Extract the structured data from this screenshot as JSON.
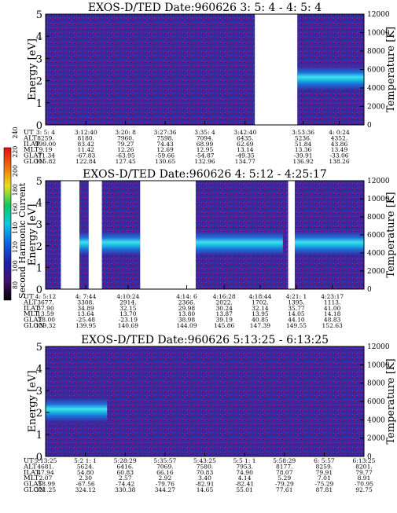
{
  "colorbar": {
    "label": "Second Harmonic Current",
    "ticks": [
      "80",
      "100",
      "120",
      "140",
      "160",
      "180",
      "200",
      "220",
      "240"
    ]
  },
  "colors": {
    "background": "#3a2aa0",
    "low": "#1e1466",
    "mid": "#1c6fd8",
    "band": "#19c8e0",
    "high": "#6cf0ff",
    "noise": "#a01050"
  },
  "row_labels": [
    "UT",
    "ALT",
    "ILAT",
    "MLT",
    "GLAT",
    "GLON"
  ],
  "chart_data": [
    {
      "type": "heatmap",
      "title": "EXOS-D/TED   Date:960626  3: 5: 4 - 4: 5: 4",
      "ylabel": "Energy [eV]",
      "y2label": "Temperature [K]",
      "ylim": [
        0,
        5
      ],
      "y2lim": [
        0,
        12000
      ],
      "yticks": [
        "0",
        "1",
        "2",
        "3",
        "4",
        "5"
      ],
      "y2ticks": [
        "0",
        "2000",
        "4000",
        "6000",
        "8000",
        "10000",
        "12000"
      ],
      "data_gaps_ut": [
        [
          "3:44:30",
          "3:52:30"
        ]
      ],
      "bright_band": {
        "energy_center_eV": 2.0,
        "segments": [
          [
            "3:52:30",
            "4:05:04"
          ]
        ]
      },
      "table": [
        [
          "3: 5: 4",
          "3:12:40",
          "3:20: 8",
          "3:27:36",
          "3:35: 4",
          "3:42:40",
          "3:53:36",
          "4: 0:24"
        ],
        [
          "8259.",
          "8180.",
          "7960.",
          "7598.",
          "7094.",
          "6435.",
          "5236.",
          "4352."
        ],
        [
          "999.00",
          "83.42",
          "79.27",
          "74.43",
          "68.99",
          "62.69",
          "51.84",
          "43.86"
        ],
        [
          "9.19",
          "11.42",
          "12.26",
          "12.69",
          "12.95",
          "13.14",
          "13.36",
          "13.49"
        ],
        [
          "-71.34",
          "-67.83",
          "-63.95",
          "-59.66",
          "-54.87",
          "-49.35",
          "-39.91",
          "-33.06"
        ],
        [
          "115.82",
          "122.84",
          "127.45",
          "130.65",
          "132.96",
          "134.77",
          "136.92",
          "138.26"
        ]
      ]
    },
    {
      "type": "heatmap",
      "title": "EXOS-D/TED   Date:960626  4: 5:12 - 4:25:17",
      "ylabel": "Energy [eV]",
      "y2label": "Temperature [K]",
      "ylim": [
        0,
        5
      ],
      "y2lim": [
        0,
        12000
      ],
      "yticks": [
        "0",
        "1",
        "2",
        "3",
        "4",
        "5"
      ],
      "y2ticks": [
        "0",
        "2000",
        "4000",
        "6000",
        "8000",
        "10000",
        "12000"
      ],
      "data_gaps_ut": [
        [
          "4:06:10",
          "4:07:20"
        ],
        [
          "4:07:55",
          "4:08:45"
        ],
        [
          "4:11:10",
          "4:14:40"
        ],
        [
          "4:20:30",
          "4:20:55"
        ]
      ],
      "bright_band": {
        "energy_center_eV": 2.0,
        "segments": [
          [
            "4:07:20",
            "4:07:55"
          ],
          [
            "4:08:45",
            "4:11:10"
          ],
          [
            "4:14:40",
            "4:20:10"
          ],
          [
            "4:20:55",
            "4:25:17"
          ]
        ]
      },
      "table": [
        [
          "4: 5:12",
          "4: 7:44",
          "4:10:24",
          "4:14: 6",
          "4:16:28",
          "4:18:44",
          "4:21: 1",
          "4:23:17"
        ],
        [
          "3677.",
          "3308.",
          "2914.",
          "2366.",
          "2022.",
          "1702.",
          "1395.",
          "1113."
        ],
        [
          "37.90",
          "34.89",
          "32.15",
          "29.98",
          "30.24",
          "32.14",
          "35.77",
          "41.00"
        ],
        [
          "13.59",
          "13.64",
          "13.70",
          "13.80",
          "13.87",
          "13.95",
          "14.05",
          "14.18"
        ],
        [
          "-28.00",
          "-25.48",
          "-23.19",
          "38.98",
          "39.19",
          "40.85",
          "44.10",
          "48.83"
        ],
        [
          "139.32",
          "139.95",
          "140.69",
          "144.09",
          "145.86",
          "147.39",
          "149.55",
          "152.63"
        ]
      ]
    },
    {
      "type": "heatmap",
      "title": "EXOS-D/TED   Date:960626  5:13:25 - 6:13:25",
      "ylabel": "Energy [eV]",
      "y2label": "Temperature [K]",
      "ylim": [
        0,
        5
      ],
      "y2lim": [
        0,
        12000
      ],
      "yticks": [
        "0",
        "1",
        "2",
        "3",
        "4",
        "5"
      ],
      "y2ticks": [
        "0",
        "2000",
        "4000",
        "6000",
        "8000",
        "10000",
        "12000"
      ],
      "data_gaps_ut": [],
      "bright_band": {
        "energy_center_eV": 2.0,
        "segments": [
          [
            "5:13:25",
            "5:25:00"
          ]
        ]
      },
      "table": [
        [
          "5:13:25",
          "5:2 1: 1",
          "5:28:29",
          "5:35:57",
          "5:43:25",
          "5:5 1: 1",
          "5:58:29",
          "6: 5:57",
          "6:13:25"
        ],
        [
          "4681.",
          "5624.",
          "6416.",
          "7069.",
          "7580.",
          "7953.",
          "8177.",
          "8259.",
          "8201."
        ],
        [
          "47.94",
          "54.80",
          "60.83",
          "66.16",
          "70.83",
          "74.90",
          "78.07",
          "79.91",
          "79.77"
        ],
        [
          "2.07",
          "2.30",
          "2.57",
          "2.92",
          "3.40",
          "4.14",
          "5.29",
          "7.01",
          "8.91"
        ],
        [
          "-58.99",
          "-67.56",
          "-74.42",
          "-79.76",
          "-82.91",
          "-82.41",
          "-79.29",
          "-75.29",
          "-70.95"
        ],
        [
          "321.25",
          "324.12",
          "330.38",
          "344.27",
          "14.65",
          "55.01",
          "77.61",
          "87.81",
          "92.75"
        ]
      ]
    }
  ]
}
